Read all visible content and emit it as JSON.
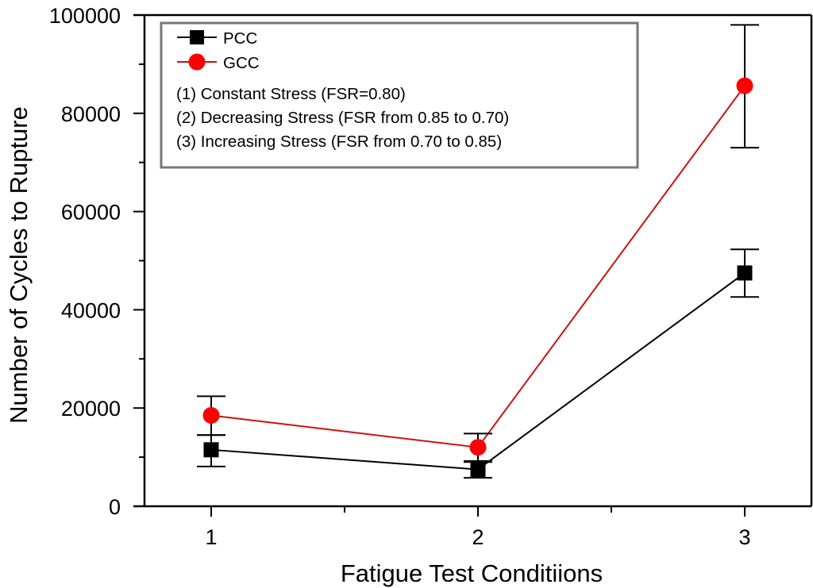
{
  "chart_data": {
    "type": "line",
    "title": "",
    "xlabel": "Fatigue Test Conditiions",
    "ylabel": "Number of Cycles to Rupture",
    "x": [
      1,
      2,
      3
    ],
    "xlim": [
      0.75,
      3.25
    ],
    "ylim": [
      0,
      100000
    ],
    "x_ticks": [
      1,
      2,
      3
    ],
    "x_minor_ticks": [
      1.5,
      2.5
    ],
    "x_tick_labels": [
      "1",
      "2",
      "3"
    ],
    "y_ticks": [
      0,
      20000,
      40000,
      60000,
      80000,
      100000
    ],
    "y_minor_ticks": [
      10000,
      30000,
      50000,
      70000,
      90000
    ],
    "y_tick_labels": [
      "0",
      "20000",
      "40000",
      "60000",
      "80000",
      "100000"
    ],
    "grid": false,
    "legend_position": "top-left",
    "series": [
      {
        "name": "PCC",
        "color": "#000000",
        "marker": "square",
        "values": [
          11500,
          7500,
          47500
        ],
        "error_low": [
          8100,
          5800,
          42600
        ],
        "error_high": [
          14500,
          9000,
          52300
        ]
      },
      {
        "name": "GCC",
        "color": "#ff0000",
        "line_color": "#cc1111",
        "marker": "circle",
        "values": [
          18500,
          12000,
          85600
        ],
        "error_low": [
          14500,
          9200,
          73000
        ],
        "error_high": [
          22400,
          14800,
          98000
        ]
      }
    ],
    "legend_notes": [
      "(1) Constant Stress (FSR=0.80)",
      "(2) Decreasing Stress (FSR from 0.85 to 0.70)",
      "(3) Increasing Stress (FSR from 0.70 to 0.85)"
    ]
  }
}
